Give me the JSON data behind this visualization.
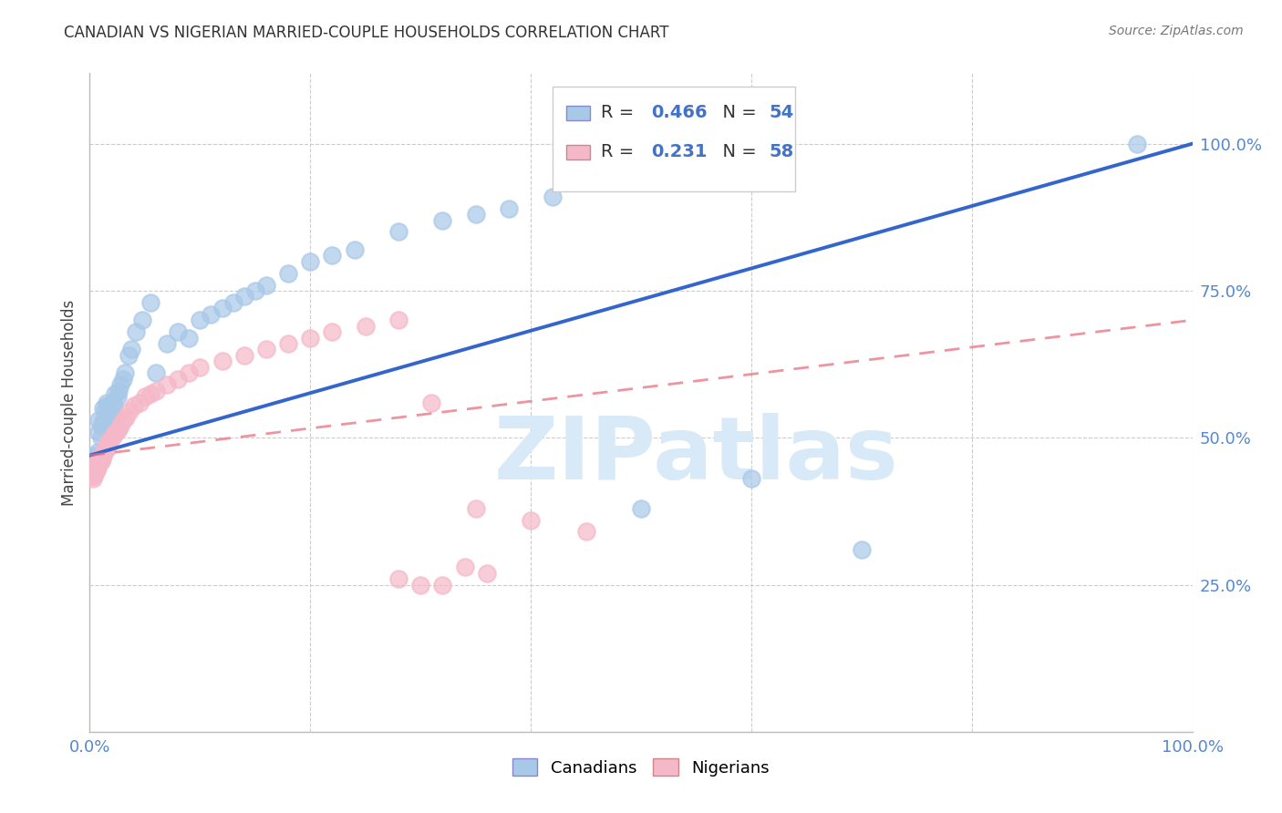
{
  "title": "CANADIAN VS NIGERIAN MARRIED-COUPLE HOUSEHOLDS CORRELATION CHART",
  "source": "Source: ZipAtlas.com",
  "ylabel": "Married-couple Households",
  "watermark": "ZIPatlas",
  "canadian_x": [
    0.005,
    0.005,
    0.005,
    0.007,
    0.008,
    0.008,
    0.01,
    0.01,
    0.012,
    0.012,
    0.014,
    0.015,
    0.016,
    0.017,
    0.018,
    0.019,
    0.02,
    0.021,
    0.022,
    0.023,
    0.025,
    0.026,
    0.028,
    0.03,
    0.032,
    0.035,
    0.038,
    0.042,
    0.048,
    0.055,
    0.06,
    0.07,
    0.08,
    0.09,
    0.1,
    0.11,
    0.12,
    0.13,
    0.14,
    0.15,
    0.16,
    0.18,
    0.2,
    0.22,
    0.24,
    0.28,
    0.32,
    0.35,
    0.38,
    0.42,
    0.5,
    0.6,
    0.7,
    0.95
  ],
  "canadian_y": [
    0.47,
    0.465,
    0.46,
    0.475,
    0.51,
    0.53,
    0.52,
    0.5,
    0.55,
    0.53,
    0.545,
    0.56,
    0.555,
    0.545,
    0.54,
    0.535,
    0.54,
    0.56,
    0.555,
    0.575,
    0.57,
    0.58,
    0.59,
    0.6,
    0.61,
    0.64,
    0.65,
    0.68,
    0.7,
    0.73,
    0.61,
    0.66,
    0.68,
    0.67,
    0.7,
    0.71,
    0.72,
    0.73,
    0.74,
    0.75,
    0.76,
    0.78,
    0.8,
    0.81,
    0.82,
    0.85,
    0.87,
    0.88,
    0.89,
    0.91,
    0.38,
    0.43,
    0.31,
    1.0
  ],
  "nigerian_x": [
    0.002,
    0.003,
    0.003,
    0.004,
    0.004,
    0.005,
    0.005,
    0.006,
    0.006,
    0.007,
    0.007,
    0.008,
    0.008,
    0.009,
    0.01,
    0.01,
    0.011,
    0.012,
    0.013,
    0.014,
    0.015,
    0.016,
    0.017,
    0.018,
    0.02,
    0.022,
    0.024,
    0.026,
    0.028,
    0.03,
    0.033,
    0.036,
    0.04,
    0.045,
    0.05,
    0.055,
    0.06,
    0.07,
    0.08,
    0.09,
    0.1,
    0.12,
    0.14,
    0.16,
    0.18,
    0.2,
    0.22,
    0.25,
    0.28,
    0.31,
    0.35,
    0.4,
    0.45,
    0.28,
    0.3,
    0.32,
    0.34,
    0.36
  ],
  "nigerian_y": [
    0.44,
    0.43,
    0.435,
    0.44,
    0.435,
    0.445,
    0.44,
    0.45,
    0.445,
    0.455,
    0.45,
    0.46,
    0.455,
    0.46,
    0.46,
    0.47,
    0.465,
    0.47,
    0.475,
    0.48,
    0.48,
    0.49,
    0.49,
    0.495,
    0.5,
    0.505,
    0.51,
    0.515,
    0.52,
    0.53,
    0.535,
    0.545,
    0.555,
    0.56,
    0.57,
    0.575,
    0.58,
    0.59,
    0.6,
    0.61,
    0.62,
    0.63,
    0.64,
    0.65,
    0.66,
    0.67,
    0.68,
    0.69,
    0.7,
    0.56,
    0.38,
    0.36,
    0.34,
    0.26,
    0.25,
    0.25,
    0.28,
    0.27
  ],
  "canadian_line_x": [
    0.0,
    1.0
  ],
  "canadian_line_y": [
    0.47,
    1.0
  ],
  "nigerian_line_x": [
    0.0,
    1.0
  ],
  "nigerian_line_y": [
    0.47,
    0.7
  ],
  "xlim": [
    0.0,
    1.0
  ],
  "ylim": [
    0.0,
    1.1
  ],
  "xtick_labels": [
    "0.0%",
    "",
    "",
    "",
    "",
    "100.0%"
  ],
  "xtick_values": [
    0.0,
    0.2,
    0.4,
    0.6,
    0.8,
    1.0
  ],
  "ytick_labels": [
    "25.0%",
    "50.0%",
    "75.0%",
    "100.0%"
  ],
  "ytick_values": [
    0.25,
    0.5,
    0.75,
    1.0
  ],
  "canadian_scatter_color": "#a8c8e8",
  "nigerian_scatter_color": "#f5b8c8",
  "canadian_line_color": "#3366cc",
  "nigerian_line_color": "#e87080",
  "watermark_color": "#d8eaf8",
  "legend_R_color": "#4472c4",
  "background_color": "#ffffff",
  "grid_color": "#cccccc",
  "tick_color": "#5588cc",
  "title_color": "#333333",
  "source_color": "#777777"
}
